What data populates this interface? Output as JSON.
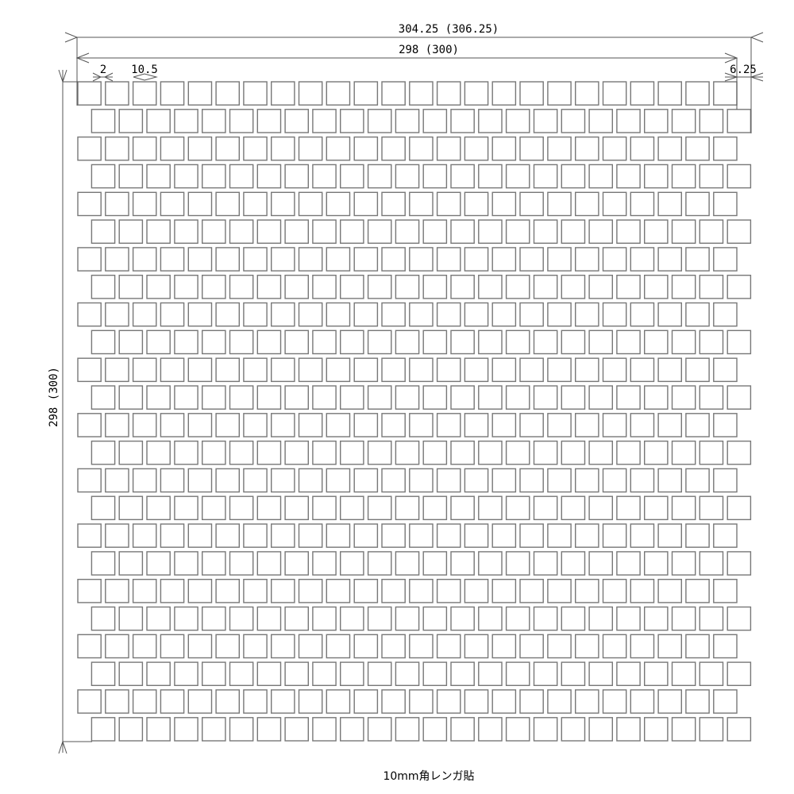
{
  "drawing": {
    "overall_width_label": "304.25 (306.25)",
    "sheet_width_label": "298 (300)",
    "sheet_height_label": "298 (300)",
    "joint_width_label": "2",
    "tile_size_label": "10.5",
    "row_offset_label": "6.25",
    "caption": "10mm角レンガ貼",
    "pattern": {
      "type": "running-bond",
      "rows": 24,
      "tiles_per_row": 24,
      "tile_mm": 10.5,
      "joint_mm": 2,
      "offset_mm": 6.25
    },
    "line_color": "#555555",
    "tile_stroke_color": "#777777"
  }
}
